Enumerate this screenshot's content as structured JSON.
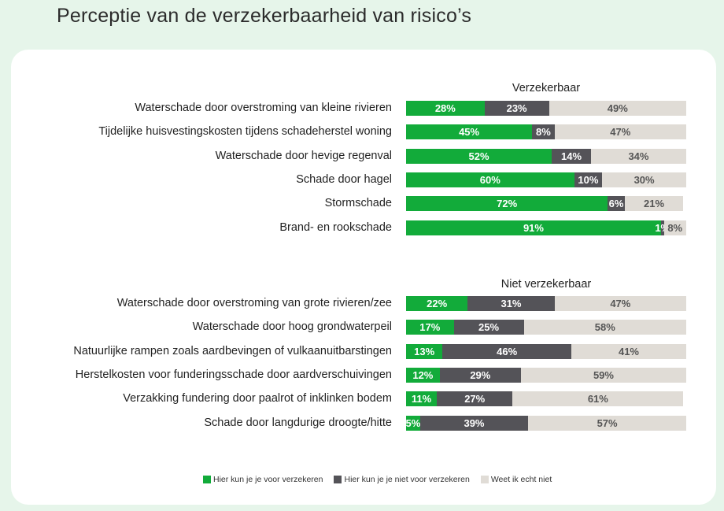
{
  "title": "Perceptie van de verzekerbaarheid van risico’s",
  "colors": {
    "green": "#12ab3a",
    "dark": "#545358",
    "light": "#e0dcd6",
    "background": "#e6f5ea"
  },
  "legend": [
    {
      "label": "Hier kun je je voor verzekeren",
      "color": "#12ab3a"
    },
    {
      "label": "Hier kun je je niet voor verzekeren",
      "color": "#545358"
    },
    {
      "label": "Weet ik echt niet",
      "color": "#e0dcd6"
    }
  ],
  "chart_data": [
    {
      "type": "bar",
      "orientation": "horizontal",
      "stacked": "100%",
      "title": "Verzekerbaar",
      "categories": [
        "Waterschade door overstroming van kleine rivieren",
        "Tijdelijke huisvestingskosten tijdens schadeherstel woning",
        "Waterschade door hevige regenval",
        "Schade door hagel",
        "Stormschade",
        "Brand- en rookschade"
      ],
      "series": [
        {
          "name": "Hier kun je je voor verzekeren",
          "values": [
            28,
            45,
            52,
            60,
            72,
            91
          ]
        },
        {
          "name": "Hier kun je je niet voor verzekeren",
          "values": [
            23,
            8,
            14,
            10,
            6,
            1
          ]
        },
        {
          "name": "Weet ik echt niet",
          "values": [
            49,
            47,
            34,
            30,
            21,
            8
          ]
        }
      ],
      "xlim": [
        0,
        100
      ],
      "grid": false,
      "legend_position": "bottom"
    },
    {
      "type": "bar",
      "orientation": "horizontal",
      "stacked": "100%",
      "title": "Niet verzekerbaar",
      "categories": [
        "Waterschade door overstroming van grote rivieren/zee",
        "Waterschade door hoog grondwaterpeil",
        "Natuurlijke rampen zoals aardbevingen of vulkaanuitbarstingen",
        "Herstelkosten voor funderingsschade door aardverschuivingen",
        "Verzakking fundering door paalrot of inklinken bodem",
        "Schade door langdurige droogte/hitte"
      ],
      "series": [
        {
          "name": "Hier kun je je voor verzekeren",
          "values": [
            22,
            17,
            13,
            12,
            11,
            5
          ]
        },
        {
          "name": "Hier kun je je niet voor verzekeren",
          "values": [
            31,
            25,
            46,
            29,
            27,
            39
          ]
        },
        {
          "name": "Weet ik echt niet",
          "values": [
            47,
            58,
            41,
            59,
            61,
            57
          ]
        }
      ],
      "xlim": [
        0,
        100
      ],
      "grid": false,
      "legend_position": "bottom"
    }
  ]
}
